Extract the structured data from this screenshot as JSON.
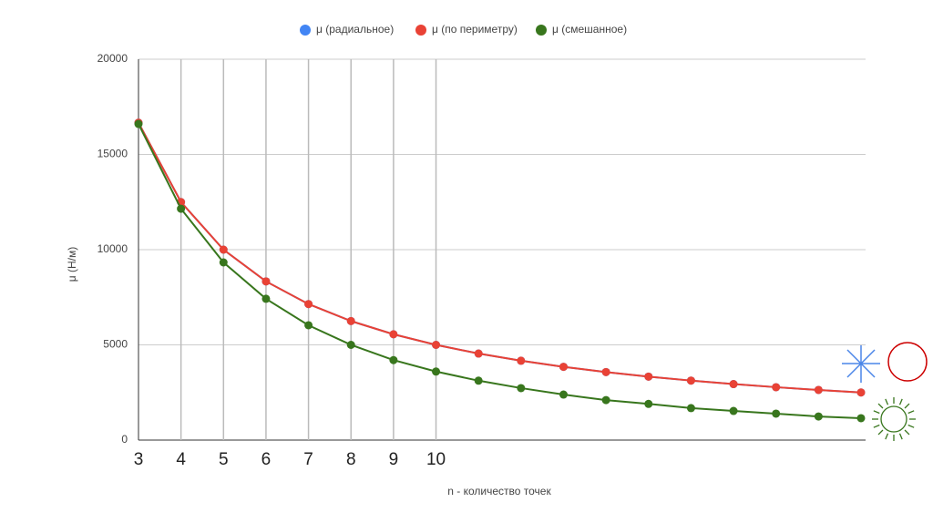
{
  "chart_data": {
    "type": "line",
    "x_label": "n - количество точек",
    "y_label": "μ (Н/м)",
    "x": [
      3,
      4,
      5,
      6,
      7,
      8,
      9,
      10,
      11,
      12,
      13,
      14,
      15,
      16,
      17,
      18,
      19,
      20
    ],
    "series": [
      {
        "name": "μ (радиальное)",
        "color": "#4285f4",
        "values": [
          16667,
          12500,
          10000,
          8333,
          7143,
          6250,
          5556,
          5000,
          4545,
          4167,
          3846,
          3571,
          3333,
          3125,
          2941,
          2778,
          2632,
          2500
        ]
      },
      {
        "name": "μ (по периметру)",
        "color": "#e94235",
        "values": [
          16667,
          12500,
          10000,
          8333,
          7143,
          6250,
          5556,
          5000,
          4545,
          4167,
          3846,
          3571,
          3333,
          3125,
          2941,
          2778,
          2632,
          2500
        ]
      },
      {
        "name": "μ (смешанное)",
        "color": "#38761d",
        "values": [
          16600,
          12150,
          9330,
          7420,
          6030,
          5000,
          4200,
          3600,
          3120,
          2730,
          2390,
          2100,
          1900,
          1680,
          1530,
          1390,
          1240,
          1150
        ]
      }
    ],
    "xlim": [
      3,
      20
    ],
    "xticks": [
      3,
      4,
      5,
      6,
      7,
      8,
      9,
      10
    ],
    "ylim": [
      0,
      20000
    ],
    "yticks": [
      0,
      5000,
      10000,
      15000,
      20000
    ],
    "grid": true,
    "legend": "top"
  }
}
